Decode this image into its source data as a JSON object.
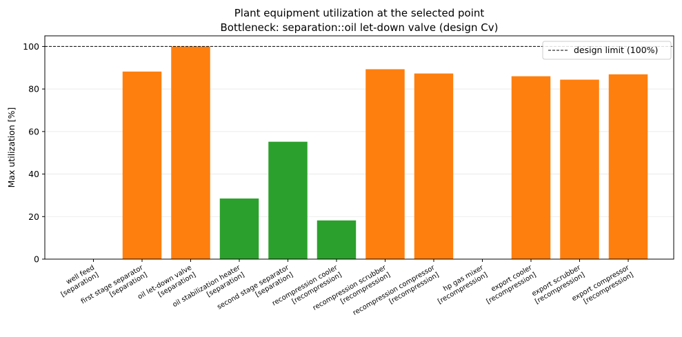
{
  "chart_data": {
    "type": "bar",
    "title_line1": "Plant equipment utilization at the selected point",
    "title_line2": "Bottleneck: separation::oil let-down valve (design Cv)",
    "xlabel": "",
    "ylabel": "Max utilization [%]",
    "ylim": [
      0,
      105
    ],
    "yticks": [
      0,
      20,
      40,
      60,
      80,
      100
    ],
    "grid": "horizontal",
    "legend": {
      "placement": "top-right",
      "label": "design limit (100%)"
    },
    "reference_line": {
      "value": 100,
      "style": "dashed",
      "color": "#000000"
    },
    "colors": {
      "high": "#ff7f0e",
      "ok": "#2ca02c"
    },
    "categories": [
      {
        "name": "well feed",
        "group": "[separation]",
        "value": 0,
        "color": "#ff7f0e"
      },
      {
        "name": "first stage separator",
        "group": "[separation]",
        "value": 88.2,
        "color": "#ff7f0e"
      },
      {
        "name": "oil let-down valve",
        "group": "[separation]",
        "value": 100,
        "color": "#ff7f0e"
      },
      {
        "name": "oil stabilization heater",
        "group": "[separation]",
        "value": 28.5,
        "color": "#2ca02c"
      },
      {
        "name": "second stage separator",
        "group": "[separation]",
        "value": 55.2,
        "color": "#2ca02c"
      },
      {
        "name": "recompression cooler",
        "group": "[recompression]",
        "value": 18.2,
        "color": "#2ca02c"
      },
      {
        "name": "recompression scrubber",
        "group": "[recompression]",
        "value": 89.3,
        "color": "#ff7f0e"
      },
      {
        "name": "recompression compressor",
        "group": "[recompression]",
        "value": 87.3,
        "color": "#ff7f0e"
      },
      {
        "name": "hp gas mixer",
        "group": "[recompression]",
        "value": 0,
        "color": "#ff7f0e"
      },
      {
        "name": "export cooler",
        "group": "[recompression]",
        "value": 86.0,
        "color": "#ff7f0e"
      },
      {
        "name": "export scrubber",
        "group": "[recompression]",
        "value": 84.4,
        "color": "#ff7f0e"
      },
      {
        "name": "export compressor",
        "group": "[recompression]",
        "value": 86.9,
        "color": "#ff7f0e"
      }
    ]
  }
}
